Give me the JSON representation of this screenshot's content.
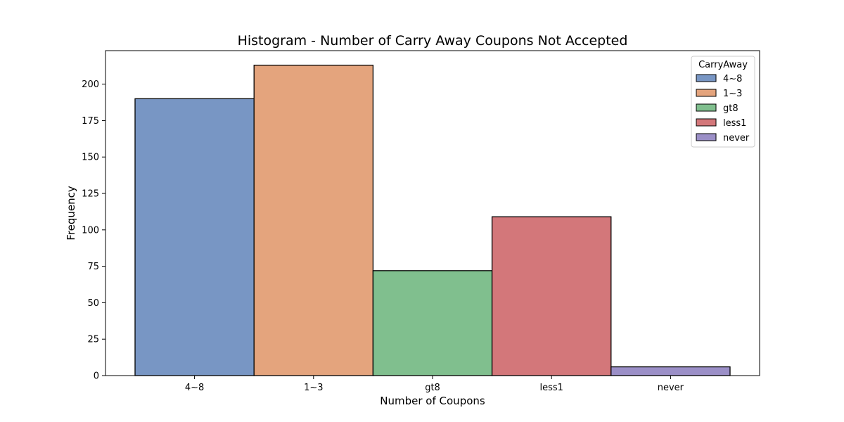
{
  "chart_data": {
    "type": "bar",
    "title": "Histogram - Number of Carry Away Coupons Not Accepted",
    "xlabel": "Number of Coupons",
    "ylabel": "Frequency",
    "categories": [
      "4~8",
      "1~3",
      "gt8",
      "less1",
      "never"
    ],
    "values": [
      190,
      213,
      72,
      109,
      6
    ],
    "colors": [
      "#7896c4",
      "#e4a47d",
      "#80bf8e",
      "#d3777a",
      "#9b8fc7"
    ],
    "ylim": [
      0,
      223
    ],
    "yticks": [
      0,
      25,
      50,
      75,
      100,
      125,
      150,
      175,
      200
    ],
    "grid": false,
    "legend": {
      "title": "CarryAway",
      "placement": "top-right",
      "entries": [
        "4~8",
        "1~3",
        "gt8",
        "less1",
        "never"
      ]
    }
  }
}
